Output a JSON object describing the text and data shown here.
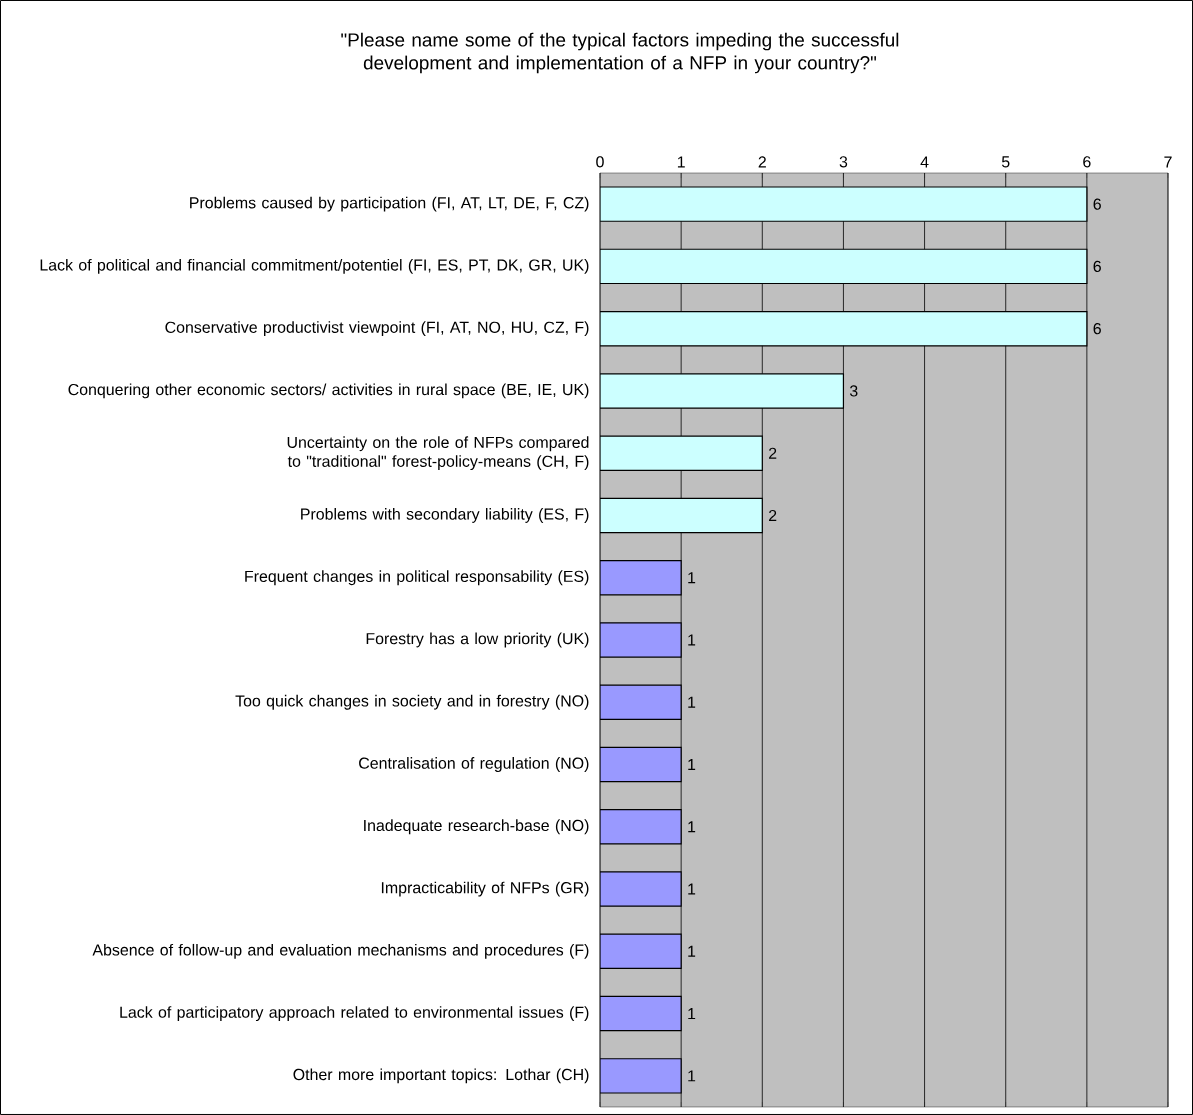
{
  "chart_data": {
    "type": "bar",
    "orientation": "horizontal",
    "title": "\"Please name some of the typical factors impeding the successful development and implementation of a NFP in your country?\"",
    "categories": [
      "Problems caused by participation (FI, AT, LT, DE, F, CZ)",
      "Lack of political and financial commitment/potentiel (FI, ES, PT, DK, GR, UK)",
      "Conservative productivist viewpoint (FI, AT, NO, HU, CZ, F)",
      "Conquering other economic sectors/ activities in rural space (BE, IE, UK)",
      "Uncertainty on the role of NFPs compared to \"traditional\" forest-policy-means (CH, F)",
      "Problems with secondary liability (ES, F)",
      "Frequent changes in political responsability (ES)",
      "Forestry has a low priority (UK)",
      "Too quick changes in society and in forestry (NO)",
      "Centralisation of regulation (NO)",
      "Inadequate research-base (NO)",
      "Impracticability of NFPs (GR)",
      "Absence of follow-up and evaluation mechanisms and procedures (F)",
      "Lack of participatory approach related to environmental issues (F)",
      "Other more important topics: Lothar (CH)"
    ],
    "values": [
      6,
      6,
      6,
      3,
      2,
      2,
      1,
      1,
      1,
      1,
      1,
      1,
      1,
      1,
      1
    ],
    "colors": [
      "#ccffff",
      "#ccffff",
      "#ccffff",
      "#ccffff",
      "#ccffff",
      "#ccffff",
      "#9999ff",
      "#9999ff",
      "#9999ff",
      "#9999ff",
      "#9999ff",
      "#9999ff",
      "#9999ff",
      "#9999ff",
      "#9999ff"
    ],
    "xlim": [
      0,
      7
    ],
    "xticks": [
      0,
      1,
      2,
      3,
      4,
      5,
      6,
      7
    ],
    "grid": "x",
    "data_labels": true
  }
}
